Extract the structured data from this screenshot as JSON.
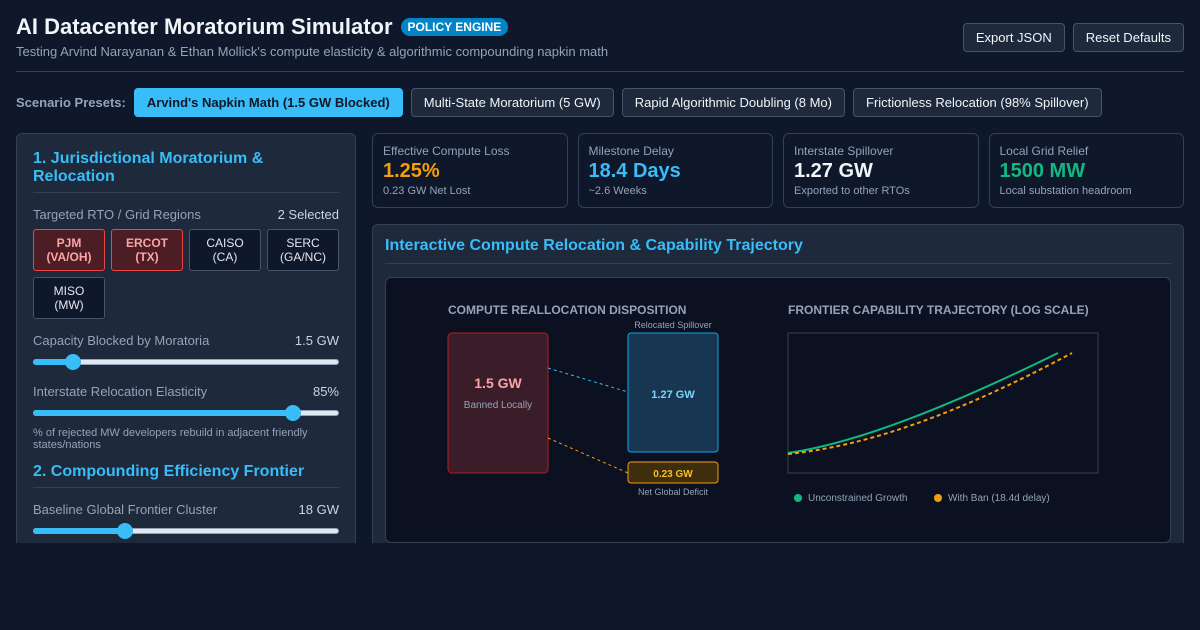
{
  "header": {
    "title": "AI Datacenter Moratorium Simulator",
    "badge": "POLICY ENGINE",
    "subtitle": "Testing Arvind Narayanan & Ethan Mollick's compute elasticity & algorithmic compounding napkin math",
    "export_label": "Export JSON",
    "reset_label": "Reset Defaults"
  },
  "presets": {
    "label": "Scenario Presets:",
    "items": [
      {
        "label": "Arvind's Napkin Math (1.5 GW Blocked)",
        "active": true
      },
      {
        "label": "Multi-State Moratorium (5 GW)",
        "active": false
      },
      {
        "label": "Rapid Algorithmic Doubling (8 Mo)",
        "active": false
      },
      {
        "label": "Frictionless Relocation (98% Spillover)",
        "active": false
      }
    ]
  },
  "left": {
    "section1_title": "1. Jurisdictional Moratorium & Relocation",
    "regions_label": "Targeted RTO / Grid Regions",
    "regions_count": "2 Selected",
    "regions": [
      {
        "name": "PJM",
        "sub": "(VA/OH)",
        "selected": true
      },
      {
        "name": "ERCOT",
        "sub": "(TX)",
        "selected": true
      },
      {
        "name": "CAISO",
        "sub": "(CA)",
        "selected": false
      },
      {
        "name": "SERC",
        "sub": "(GA/NC)",
        "selected": false
      },
      {
        "name": "MISO",
        "sub": "(MW)",
        "selected": false
      }
    ],
    "capacity_label": "Capacity Blocked by Moratoria",
    "capacity_value": "1.5 GW",
    "capacity_fraction": 0.13,
    "elasticity_label": "Interstate Relocation Elasticity",
    "elasticity_value": "85%",
    "elasticity_fraction": 0.85,
    "elasticity_note": "% of rejected MW developers rebuild in adjacent friendly states/nations",
    "section2_title": "2. Compounding Efficiency Frontier",
    "baseline_label": "Baseline Global Frontier Cluster",
    "baseline_value": "18 GW",
    "baseline_fraction": 0.3
  },
  "kpis": [
    {
      "label": "Effective Compute Loss",
      "value": "1.25%",
      "sub": "0.23 GW Net Lost",
      "color": "#f59e0b"
    },
    {
      "label": "Milestone Delay",
      "value": "18.4 Days",
      "sub": "~2.6 Weeks",
      "color": "#38bdf8"
    },
    {
      "label": "Interstate Spillover",
      "value": "1.27 GW",
      "sub": "Exported to other RTOs",
      "color": "#f1f5f9"
    },
    {
      "label": "Local Grid Relief",
      "value": "1500 MW",
      "sub": "Local substation headroom",
      "color": "#10b981"
    }
  ],
  "viz": {
    "title": "Interactive Compute Relocation & Capability Trajectory",
    "left_heading": "COMPUTE REALLOCATION DISPOSITION",
    "banned_value": "1.5 GW",
    "banned_label": "Banned Locally",
    "spill_top_label": "Relocated Spillover",
    "spill_value": "1.27 GW",
    "deficit_value": "0.23 GW",
    "deficit_label": "Net Global Deficit",
    "right_heading": "FRONTIER CAPABILITY TRAJECTORY (LOG SCALE)",
    "legend": [
      {
        "label": "Unconstrained Growth",
        "color": "#10b981"
      },
      {
        "label": "With Ban (18.4d delay)",
        "color": "#f59e0b"
      }
    ]
  }
}
